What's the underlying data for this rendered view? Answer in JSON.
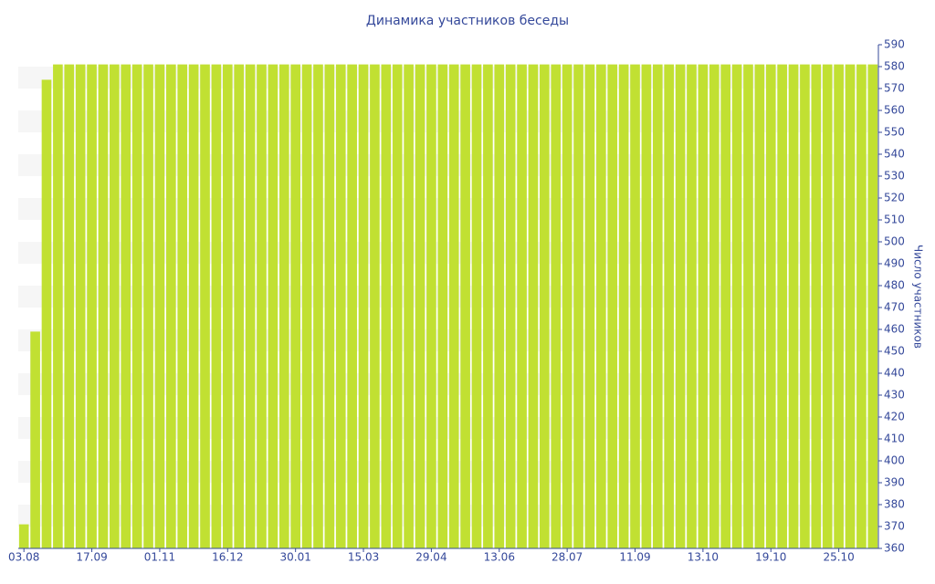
{
  "chart_data": {
    "type": "bar",
    "title": "Динамика участников беседы",
    "y_label": "Число участников",
    "categories": [
      "03.08",
      null,
      null,
      null,
      null,
      null,
      "17.09",
      null,
      null,
      null,
      null,
      null,
      "01.11",
      null,
      null,
      null,
      null,
      null,
      "16.12",
      null,
      null,
      null,
      null,
      null,
      "30.01",
      null,
      null,
      null,
      null,
      null,
      "15.03",
      null,
      null,
      null,
      null,
      null,
      "29.04",
      null,
      null,
      null,
      null,
      null,
      "13.06",
      null,
      null,
      null,
      null,
      null,
      "28.07",
      null,
      null,
      null,
      null,
      null,
      "11.09",
      null,
      null,
      null,
      null,
      null,
      "13.10",
      null,
      null,
      null,
      null,
      null,
      "19.10",
      null,
      null,
      null,
      null,
      null,
      "25.10",
      null,
      null,
      null
    ],
    "values": [
      371,
      459,
      574,
      581,
      581,
      581,
      581,
      581,
      581,
      581,
      581,
      581,
      581,
      581,
      581,
      581,
      581,
      581,
      581,
      581,
      581,
      581,
      581,
      581,
      581,
      581,
      581,
      581,
      581,
      581,
      581,
      581,
      581,
      581,
      581,
      581,
      581,
      581,
      581,
      581,
      581,
      581,
      581,
      581,
      581,
      581,
      581,
      581,
      581,
      581,
      581,
      581,
      581,
      581,
      581,
      581,
      581,
      581,
      581,
      581,
      581,
      581,
      581,
      581,
      581,
      581,
      581,
      581,
      581,
      581,
      581,
      581,
      581,
      581,
      581,
      581
    ],
    "color": "#c1e032",
    "ylim": [
      360,
      590
    ],
    "yticks": [
      360,
      370,
      380,
      390,
      400,
      410,
      420,
      430,
      440,
      450,
      460,
      470,
      480,
      490,
      500,
      510,
      520,
      530,
      540,
      550,
      560,
      570,
      580,
      590
    ],
    "y_axis_side": "right",
    "grid_bands": true
  }
}
